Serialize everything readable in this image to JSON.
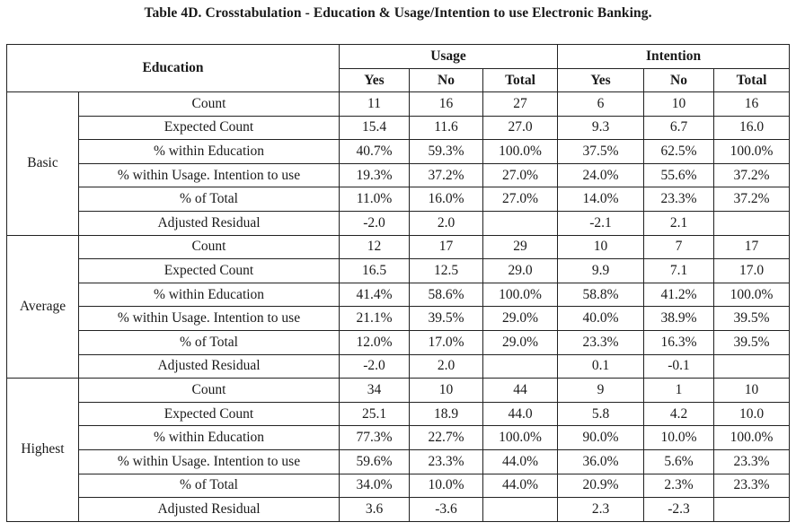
{
  "caption": "Table 4D. Crosstabulation - Education & Usage/Intention to use Electronic Banking.",
  "headers": {
    "education": "Education",
    "usage": "Usage",
    "intention": "Intention",
    "yes": "Yes",
    "no": "No",
    "total": "Total"
  },
  "groups": [
    {
      "label": "Basic",
      "rows": [
        {
          "stat": "Count",
          "values": [
            "11",
            "16",
            "27",
            "6",
            "10",
            "16"
          ]
        },
        {
          "stat": "Expected Count",
          "values": [
            "15.4",
            "11.6",
            "27.0",
            "9.3",
            "6.7",
            "16.0"
          ]
        },
        {
          "stat": "% within Education",
          "values": [
            "40.7%",
            "59.3%",
            "100.0%",
            "37.5%",
            "62.5%",
            "100.0%"
          ]
        },
        {
          "stat": "% within Usage. Intention to use",
          "values": [
            "19.3%",
            "37.2%",
            "27.0%",
            "24.0%",
            "55.6%",
            "37.2%"
          ]
        },
        {
          "stat": "% of Total",
          "values": [
            "11.0%",
            "16.0%",
            "27.0%",
            "14.0%",
            "23.3%",
            "37.2%"
          ]
        },
        {
          "stat": "Adjusted Residual",
          "values": [
            "-2.0",
            "2.0",
            "",
            "-2.1",
            "2.1",
            ""
          ]
        }
      ]
    },
    {
      "label": "Average",
      "rows": [
        {
          "stat": "Count",
          "values": [
            "12",
            "17",
            "29",
            "10",
            "7",
            "17"
          ]
        },
        {
          "stat": "Expected Count",
          "values": [
            "16.5",
            "12.5",
            "29.0",
            "9.9",
            "7.1",
            "17.0"
          ]
        },
        {
          "stat": "% within Education",
          "values": [
            "41.4%",
            "58.6%",
            "100.0%",
            "58.8%",
            "41.2%",
            "100.0%"
          ]
        },
        {
          "stat": "% within Usage. Intention to use",
          "values": [
            "21.1%",
            "39.5%",
            "29.0%",
            "40.0%",
            "38.9%",
            "39.5%"
          ]
        },
        {
          "stat": "% of Total",
          "values": [
            "12.0%",
            "17.0%",
            "29.0%",
            "23.3%",
            "16.3%",
            "39.5%"
          ]
        },
        {
          "stat": "Adjusted Residual",
          "values": [
            "-2.0",
            "2.0",
            "",
            "0.1",
            "-0.1",
            ""
          ]
        }
      ]
    },
    {
      "label": "Highest",
      "rows": [
        {
          "stat": "Count",
          "values": [
            "34",
            "10",
            "44",
            "9",
            "1",
            "10"
          ]
        },
        {
          "stat": "Expected Count",
          "values": [
            "25.1",
            "18.9",
            "44.0",
            "5.8",
            "4.2",
            "10.0"
          ]
        },
        {
          "stat": "% within Education",
          "values": [
            "77.3%",
            "22.7%",
            "100.0%",
            "90.0%",
            "10.0%",
            "100.0%"
          ]
        },
        {
          "stat": "% within Usage. Intention to use",
          "values": [
            "59.6%",
            "23.3%",
            "44.0%",
            "36.0%",
            "5.6%",
            "23.3%"
          ]
        },
        {
          "stat": "% of Total",
          "values": [
            "34.0%",
            "10.0%",
            "44.0%",
            "20.9%",
            "2.3%",
            "23.3%"
          ]
        },
        {
          "stat": "Adjusted Residual",
          "values": [
            "3.6",
            "-3.6",
            "",
            "2.3",
            "-2.3",
            ""
          ]
        }
      ]
    }
  ]
}
